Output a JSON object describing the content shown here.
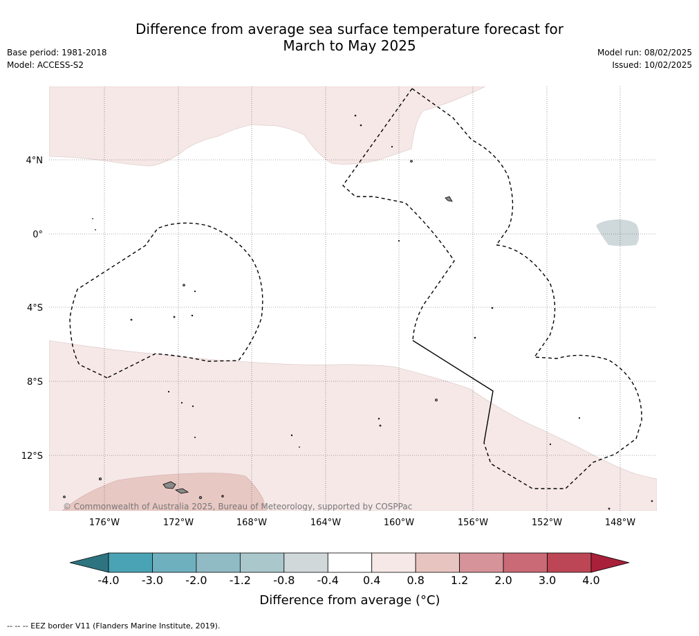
{
  "title": {
    "line1": "Difference from average sea surface temperature forecast for",
    "line2": "March to May 2025"
  },
  "meta": {
    "base_period": "Base period: 1981-2018",
    "model": "Model: ACCESS-S2",
    "model_run": "Model run: 08/02/2025",
    "issued": "Issued: 10/02/2025"
  },
  "map": {
    "lat_labels": [
      "4°N",
      "0°",
      "4°S",
      "8°S",
      "12°S"
    ],
    "lon_labels": [
      "176°W",
      "172°W",
      "168°W",
      "164°W",
      "160°W",
      "156°W",
      "152°W",
      "148°W"
    ],
    "copyright": "© Commonwealth of Australia 2025, Bureau of Meteorology, supported by COSPPac"
  },
  "colorbar": {
    "ticks": [
      "-4.0",
      "-3.0",
      "-2.0",
      "-1.2",
      "-0.8",
      "-0.4",
      "0.4",
      "0.8",
      "1.2",
      "2.0",
      "3.0",
      "4.0"
    ],
    "label": "Difference from average (°C)",
    "colors": [
      "#2e7380",
      "#4aa3b4",
      "#6fb0bf",
      "#90bbc5",
      "#aac7cc",
      "#d0d8da",
      "#ffffff",
      "#f5e8e7",
      "#e8c4c0",
      "#d6939a",
      "#c96a76",
      "#bc4655",
      "#a8203a"
    ]
  },
  "footnote": "-- -- -- EEZ border V11 (Flanders Marine Institute, 2019)."
}
